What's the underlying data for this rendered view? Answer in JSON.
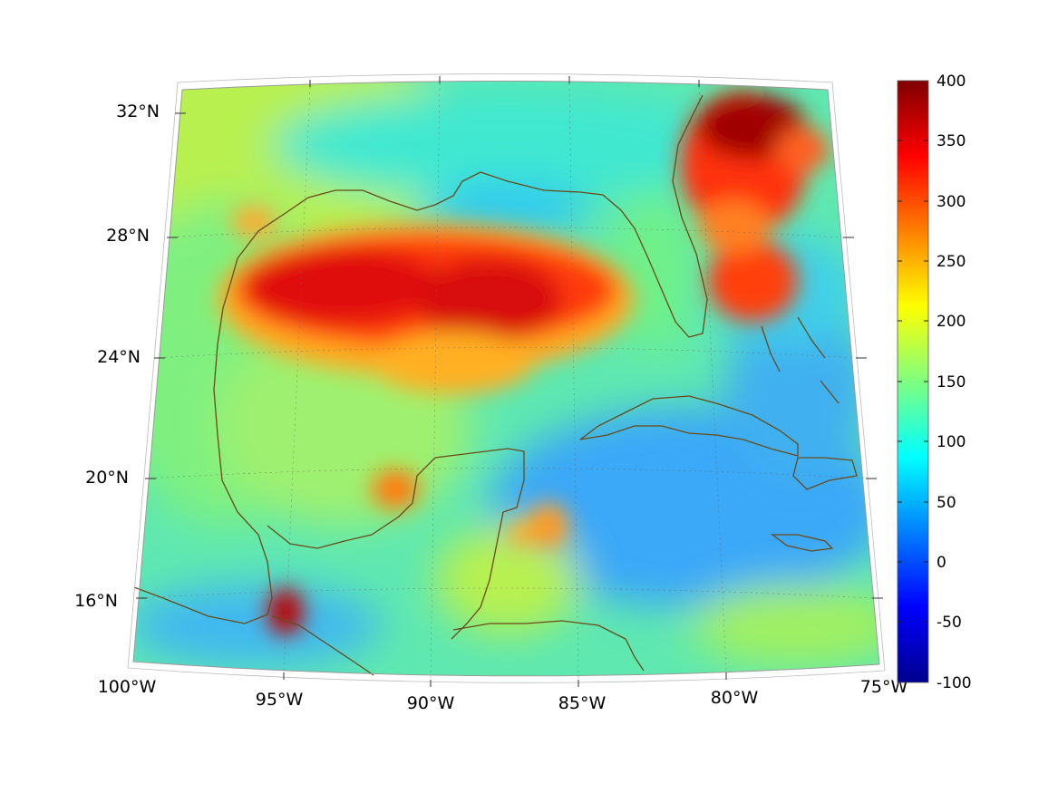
{
  "map": {
    "projection": "conic",
    "lon_range": [
      -100,
      -75
    ],
    "lat_range": [
      14,
      33
    ],
    "lon_labels": [
      "100°W",
      "95°W",
      "90°W",
      "85°W",
      "80°W",
      "75°W"
    ],
    "lat_labels": [
      "32°N",
      "28°N",
      "24°N",
      "20°N",
      "16°N"
    ],
    "grid": true,
    "coastline_color": "#6b4a18"
  },
  "colorbar": {
    "colormap": "jet",
    "ticks": [
      "400",
      "350",
      "300",
      "250",
      "200",
      "150",
      "100",
      "50",
      "0",
      "-50",
      "-100"
    ],
    "range": [
      -100,
      400
    ]
  },
  "field_features": [
    {
      "name": "gulf-central-high",
      "value": 340
    },
    {
      "name": "gulf-stream-florida",
      "value": 390
    },
    {
      "name": "bahamas-high",
      "value": 320
    },
    {
      "name": "tehuantepec-spot",
      "value": 380
    },
    {
      "name": "campeche-spot",
      "value": 280
    },
    {
      "name": "caribbean-low",
      "value": 50
    }
  ]
}
